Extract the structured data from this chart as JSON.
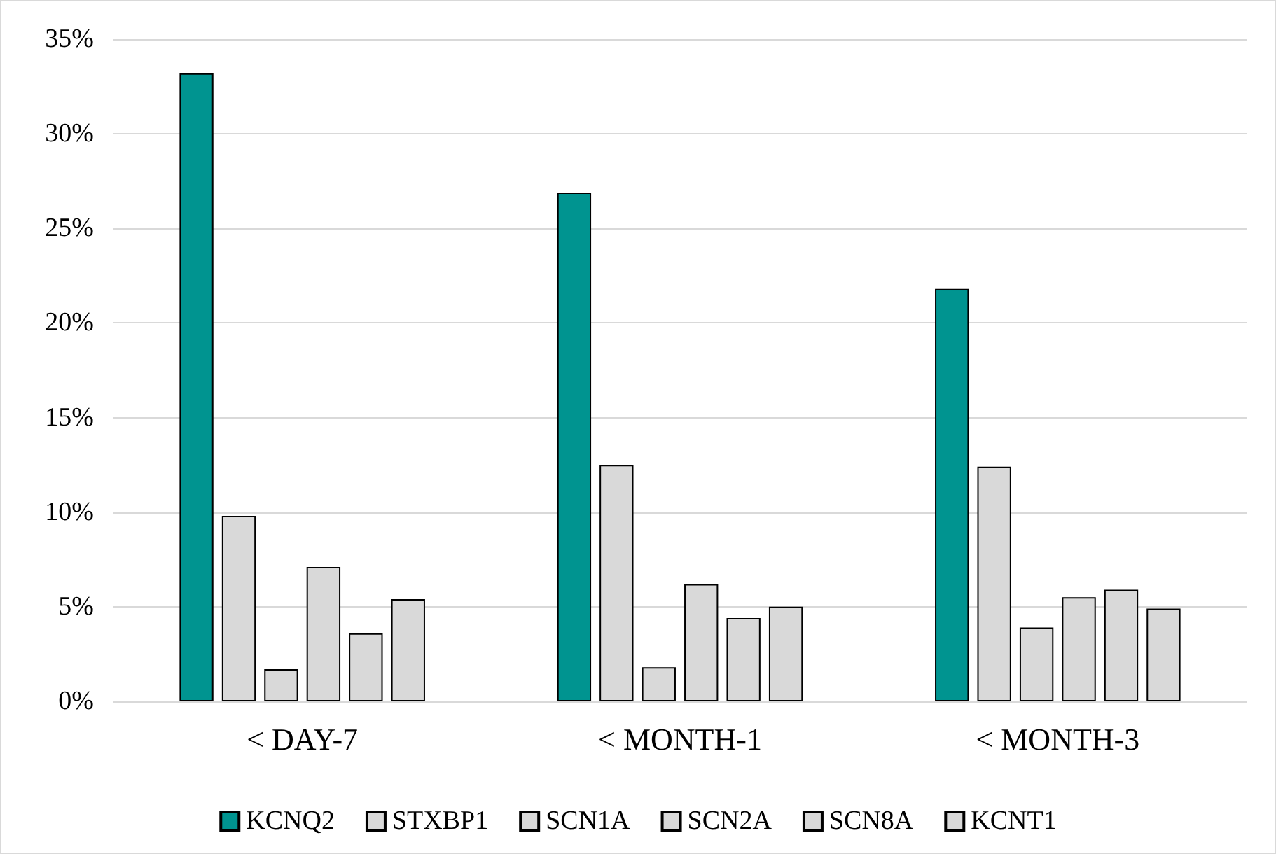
{
  "chart_data": {
    "type": "bar",
    "categories": [
      "< DAY-7",
      "< MONTH-1",
      "< MONTH-3"
    ],
    "series": [
      {
        "name": "KCNQ2",
        "color": "#009490",
        "values": [
          33.2,
          26.9,
          21.8
        ]
      },
      {
        "name": "STXBP1",
        "color": "#d9d9d9",
        "values": [
          9.8,
          12.5,
          12.4
        ]
      },
      {
        "name": "SCN1A",
        "color": "#d9d9d9",
        "values": [
          1.7,
          1.8,
          3.9
        ]
      },
      {
        "name": "SCN2A",
        "color": "#d9d9d9",
        "values": [
          7.1,
          6.2,
          5.5
        ]
      },
      {
        "name": "SCN8A",
        "color": "#d9d9d9",
        "values": [
          3.6,
          4.4,
          5.9
        ]
      },
      {
        "name": "KCNT1",
        "color": "#d9d9d9",
        "values": [
          5.4,
          5.0,
          4.9
        ]
      }
    ],
    "ylim": [
      0,
      35
    ],
    "yticks": [
      {
        "value": 0,
        "label": "0%"
      },
      {
        "value": 5,
        "label": "5%"
      },
      {
        "value": 10,
        "label": "10%"
      },
      {
        "value": 15,
        "label": "15%"
      },
      {
        "value": 20,
        "label": "20%"
      },
      {
        "value": 25,
        "label": "25%"
      },
      {
        "value": 30,
        "label": "30%"
      },
      {
        "value": 35,
        "label": "35%"
      }
    ],
    "grid": "y",
    "legend": "bottom"
  }
}
